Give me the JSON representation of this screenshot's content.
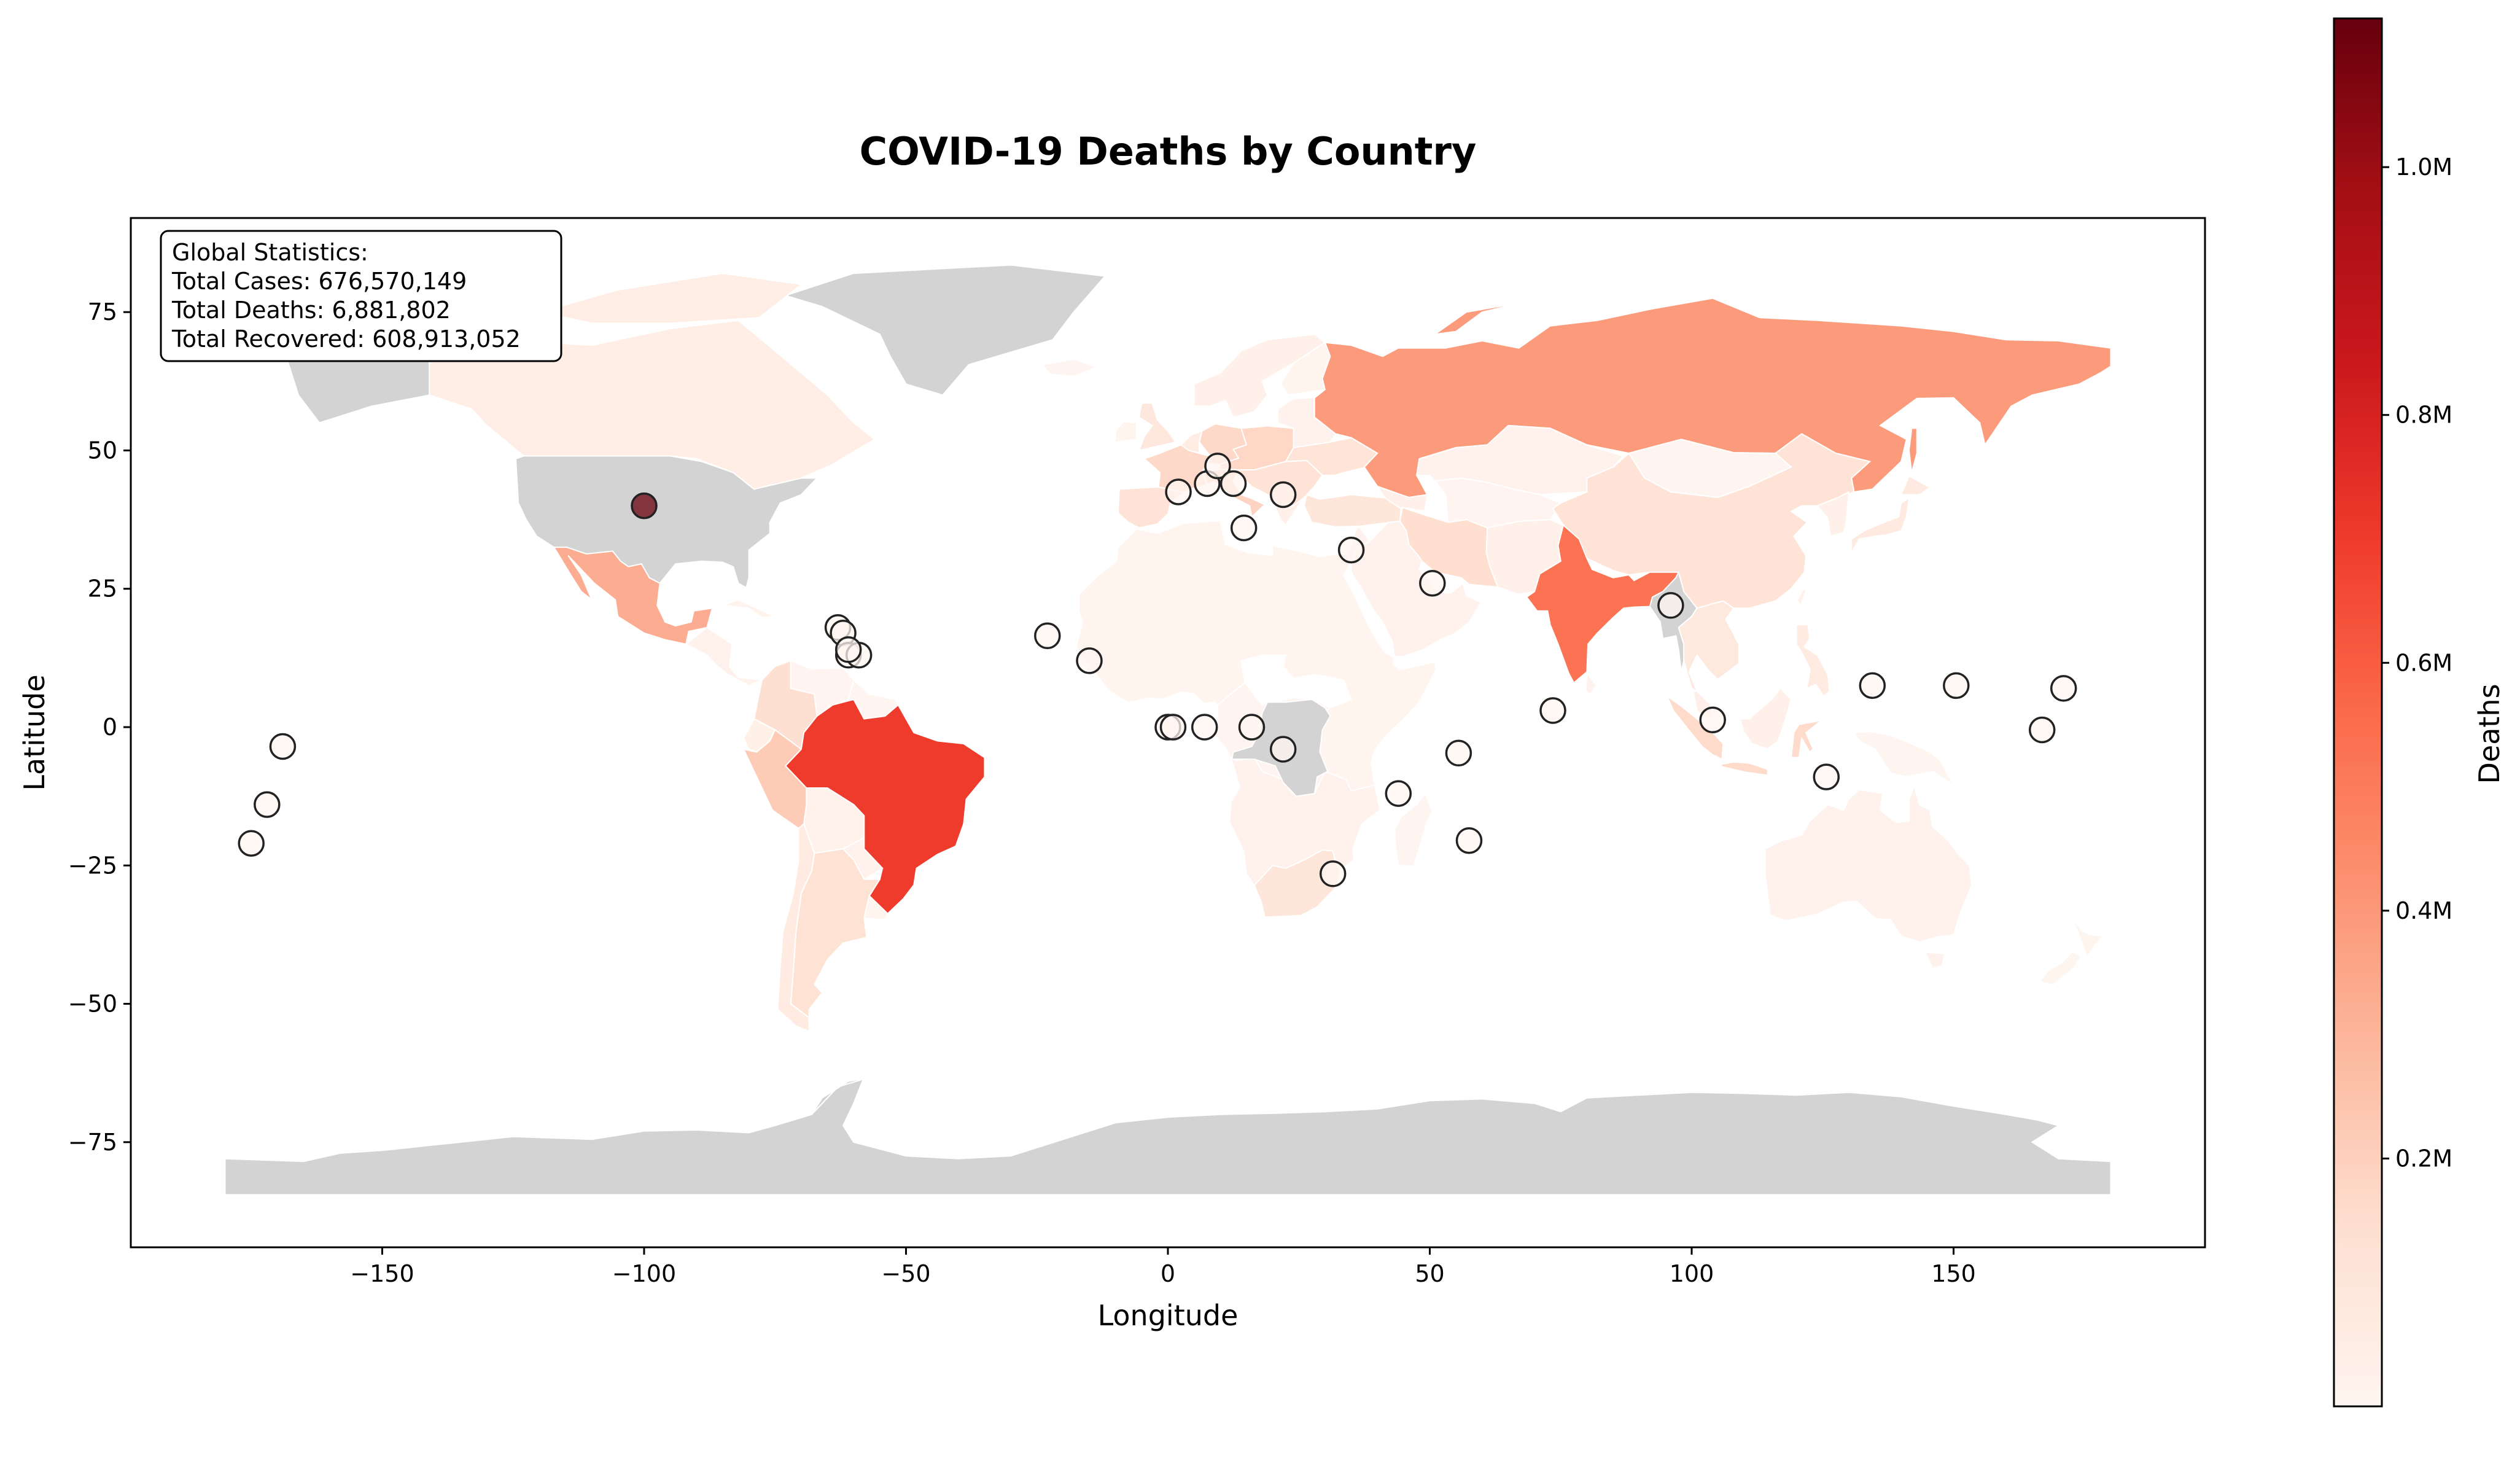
{
  "title": "COVID-19 Deaths by Country",
  "xlabel": "Longitude",
  "ylabel": "Latitude",
  "colorbar": {
    "label": "Deaths",
    "ticks": [
      "0.2M",
      "0.4M",
      "0.6M",
      "0.8M",
      "1.0M"
    ],
    "tick_values": [
      200000,
      400000,
      600000,
      800000,
      1000000
    ],
    "range": [
      0,
      1120000
    ],
    "colormap": "Reds",
    "stops": [
      "#fff5f0",
      "#fee0d2",
      "#fcbba1",
      "#fc9272",
      "#fb6a4a",
      "#ef3b2c",
      "#cb181d",
      "#a50f15",
      "#67000d"
    ]
  },
  "stats": {
    "heading": "Global Statistics:",
    "lines": [
      "Total Cases: 676,570,149",
      "Total Deaths: 6,881,802",
      "Total Recovered: 608,913,052"
    ]
  },
  "colors": {
    "no_data": "#d3d3d3",
    "marker_edge": "#222222"
  },
  "chart_data": {
    "type": "choropleth",
    "title": "COVID-19 Deaths by Country",
    "xlabel": "Longitude",
    "ylabel": "Latitude",
    "xlim": [
      -198,
      198
    ],
    "ylim": [
      -94,
      92
    ],
    "xticks": [
      -150,
      -100,
      -50,
      0,
      50,
      100,
      150
    ],
    "xtick_labels": [
      "−150",
      "−100",
      "−50",
      "0",
      "50",
      "100",
      "150"
    ],
    "yticks": [
      75,
      50,
      25,
      0,
      -25,
      -50,
      -75
    ],
    "ytick_labels": [
      "75",
      "50",
      "25",
      "0",
      "−25",
      "−50",
      "−75"
    ],
    "regions": [
      {
        "region": "United States",
        "deaths": null
      },
      {
        "region": "Greenland",
        "deaths": null
      },
      {
        "region": "Antarctica",
        "deaths": null
      },
      {
        "region": "Democratic Republic of the Congo",
        "deaths": null
      },
      {
        "region": "Myanmar",
        "deaths": null
      },
      {
        "region": "Canada",
        "deaths": 50000
      },
      {
        "region": "Mexico",
        "deaths": 330000
      },
      {
        "region": "Brazil",
        "deaths": 700000
      },
      {
        "region": "Peru",
        "deaths": 220000
      },
      {
        "region": "Argentina",
        "deaths": 130000
      },
      {
        "region": "Colombia",
        "deaths": 140000
      },
      {
        "region": "Chile",
        "deaths": 64000
      },
      {
        "region": "Russia",
        "deaths": 390000
      },
      {
        "region": "India",
        "deaths": 530000
      },
      {
        "region": "China",
        "deaths": 120000
      },
      {
        "region": "Iran",
        "deaths": 145000
      },
      {
        "region": "France",
        "deaths": 165000
      },
      {
        "region": "Germany",
        "deaths": 170000
      },
      {
        "region": "Italy",
        "deaths": 190000
      },
      {
        "region": "Spain",
        "deaths": 120000
      },
      {
        "region": "Indonesia",
        "deaths": 160000
      },
      {
        "region": "South Africa",
        "deaths": 102000
      },
      {
        "region": "Australia",
        "deaths": 20000
      },
      {
        "region": "Kazakhstan",
        "deaths": 19000
      },
      {
        "region": "Africa (other)",
        "deaths": 10000
      }
    ],
    "markers": [
      {
        "lon": -100,
        "lat": 40,
        "deaths": 1120000
      },
      {
        "lon": -175,
        "lat": -21,
        "deaths": 0
      },
      {
        "lon": -172,
        "lat": -14,
        "deaths": 0
      },
      {
        "lon": -169,
        "lat": -3.5,
        "deaths": 0
      },
      {
        "lon": -63,
        "lat": 18,
        "deaths": 0
      },
      {
        "lon": -62,
        "lat": 17,
        "deaths": 0
      },
      {
        "lon": -61,
        "lat": 13,
        "deaths": 0
      },
      {
        "lon": -59,
        "lat": 13,
        "deaths": 0
      },
      {
        "lon": -61,
        "lat": 14,
        "deaths": 0
      },
      {
        "lon": -23,
        "lat": 16.5,
        "deaths": 0
      },
      {
        "lon": -15,
        "lat": 12,
        "deaths": 0
      },
      {
        "lon": 0,
        "lat": 0,
        "deaths": 0
      },
      {
        "lon": 1,
        "lat": 0,
        "deaths": 0
      },
      {
        "lon": 7,
        "lat": 0,
        "deaths": 0
      },
      {
        "lon": 16,
        "lat": 0,
        "deaths": 0
      },
      {
        "lon": 22,
        "lat": -4,
        "deaths": 0
      },
      {
        "lon": 2,
        "lat": 42.5,
        "deaths": 0
      },
      {
        "lon": 7.5,
        "lat": 44,
        "deaths": 0
      },
      {
        "lon": 9.5,
        "lat": 47.2,
        "deaths": 0
      },
      {
        "lon": 12.5,
        "lat": 44,
        "deaths": 0
      },
      {
        "lon": 14.5,
        "lat": 36,
        "deaths": 0
      },
      {
        "lon": 22,
        "lat": 42,
        "deaths": 0
      },
      {
        "lon": 35,
        "lat": 32,
        "deaths": 0
      },
      {
        "lon": 50.5,
        "lat": 26,
        "deaths": 0
      },
      {
        "lon": 44,
        "lat": -12,
        "deaths": 0
      },
      {
        "lon": 55.5,
        "lat": -4.7,
        "deaths": 0
      },
      {
        "lon": 57.5,
        "lat": -20.5,
        "deaths": 0
      },
      {
        "lon": 31.5,
        "lat": -26.5,
        "deaths": 0
      },
      {
        "lon": 73.5,
        "lat": 3,
        "deaths": 0
      },
      {
        "lon": 96,
        "lat": 22,
        "deaths": 0
      },
      {
        "lon": 104,
        "lat": 1.3,
        "deaths": 0
      },
      {
        "lon": 125.7,
        "lat": -9,
        "deaths": 0
      },
      {
        "lon": 134.5,
        "lat": 7.5,
        "deaths": 0
      },
      {
        "lon": 150.5,
        "lat": 7.5,
        "deaths": 0
      },
      {
        "lon": 166.9,
        "lat": -0.5,
        "deaths": 0
      },
      {
        "lon": 171,
        "lat": 7,
        "deaths": 0
      }
    ]
  }
}
